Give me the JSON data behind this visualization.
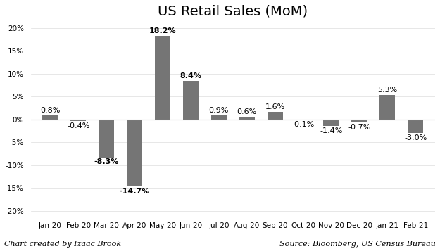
{
  "title": "US Retail Sales (MoM)",
  "categories": [
    "Jan-20",
    "Feb-20",
    "Mar-20",
    "Apr-20",
    "May-20",
    "Jun-20",
    "Jul-20",
    "Aug-20",
    "Sep-20",
    "Oct-20",
    "Nov-20",
    "Dec-20",
    "Jan-21",
    "Feb-21"
  ],
  "values": [
    0.8,
    -0.4,
    -8.3,
    -14.7,
    18.2,
    8.4,
    0.9,
    0.6,
    1.6,
    -0.1,
    -1.4,
    -0.7,
    5.3,
    -3.0
  ],
  "bar_color": "#757575",
  "ylim": [
    -21,
    21
  ],
  "yticks": [
    -20,
    -15,
    -10,
    -5,
    0,
    5,
    10,
    15,
    20
  ],
  "background_color": "#ffffff",
  "footer_left": "Chart created by Izaac Brook",
  "footer_right": "Source: Bloomberg, US Census Bureau",
  "title_fontsize": 14,
  "label_fontsize": 8,
  "tick_fontsize": 7.5,
  "footer_fontsize": 8,
  "bar_width": 0.55
}
